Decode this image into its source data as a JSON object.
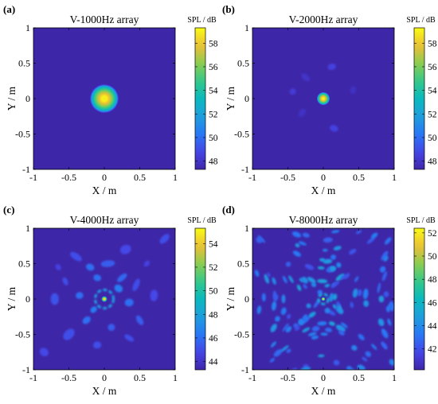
{
  "chart_data": [
    {
      "panel_label": "(a)",
      "type": "heatmap",
      "title": "V-1000Hz array",
      "xlabel": "X / m",
      "ylabel": "Y / m",
      "xlim": [
        -1,
        1
      ],
      "ylim": [
        -1,
        1
      ],
      "xticks": [
        "-1",
        "-0.5",
        "0",
        "0.5",
        "1"
      ],
      "yticks": [
        "1",
        "0.5",
        "0",
        "-0.5",
        "-1"
      ],
      "colorbar": {
        "title": "SPL / dB",
        "min": 47.3,
        "max": 59.3,
        "ticks": [
          "58",
          "56",
          "54",
          "52",
          "50",
          "48"
        ],
        "tick_values": [
          58,
          56,
          54,
          52,
          50,
          48
        ]
      },
      "peak": {
        "x": 0,
        "y": 0,
        "spl": 59,
        "radius_m": 0.2
      },
      "sidelobes": []
    },
    {
      "panel_label": "(b)",
      "type": "heatmap",
      "title": "V-2000Hz array",
      "xlabel": "X / m",
      "ylabel": "Y / m",
      "xlim": [
        -1,
        1
      ],
      "ylim": [
        -1,
        1
      ],
      "xticks": [
        "-1",
        "-0.5",
        "0",
        "0.5",
        "1"
      ],
      "yticks": [
        "1",
        "0.5",
        "0",
        "-0.5",
        "-1"
      ],
      "colorbar": {
        "title": "SPL / dB",
        "min": 47.3,
        "max": 59.3,
        "ticks": [
          "58",
          "56",
          "54",
          "52",
          "50",
          "48"
        ],
        "tick_values": [
          58,
          56,
          54,
          52,
          50,
          48
        ]
      },
      "peak": {
        "x": 0,
        "y": 0,
        "spl": 59,
        "radius_m": 0.09
      },
      "sidelobes": [
        {
          "x": 0.12,
          "y": 0.45,
          "spl": 48.6
        },
        {
          "x": 0.15,
          "y": -0.42,
          "spl": 48.6
        },
        {
          "x": -0.43,
          "y": 0.1,
          "spl": 48.3
        },
        {
          "x": -0.25,
          "y": 0.3,
          "spl": 48.0
        },
        {
          "x": -0.3,
          "y": -0.2,
          "spl": 47.9
        },
        {
          "x": 0.42,
          "y": 0.12,
          "spl": 47.9
        }
      ]
    },
    {
      "panel_label": "(c)",
      "type": "heatmap",
      "title": "V-4000Hz array",
      "xlabel": "X / m",
      "ylabel": "Y / m",
      "xlim": [
        -1,
        1
      ],
      "ylim": [
        -1,
        1
      ],
      "xticks": [
        "-1",
        "-0.5",
        "0",
        "0.5",
        "1"
      ],
      "yticks": [
        "1",
        "0.5",
        "0",
        "-0.5",
        "-1"
      ],
      "colorbar": {
        "title": "SPL / dB",
        "min": 43.3,
        "max": 55.3,
        "ticks": [
          "54",
          "52",
          "50",
          "48",
          "46",
          "44"
        ],
        "tick_values": [
          54,
          52,
          50,
          48,
          46,
          44
        ]
      },
      "peak": {
        "x": 0,
        "y": 0,
        "spl": 55,
        "radius_m": 0.04
      },
      "ring": {
        "radius_m": 0.13,
        "spl": 47.5
      },
      "sidelobes": [
        {
          "x": -0.2,
          "y": 0.45,
          "spl": 46.0
        },
        {
          "x": 0.05,
          "y": 0.5,
          "spl": 45.5
        },
        {
          "x": 0.25,
          "y": 0.3,
          "spl": 45.8
        },
        {
          "x": 0.45,
          "y": 0.2,
          "spl": 45.0
        },
        {
          "x": -0.4,
          "y": 0.6,
          "spl": 45.0
        },
        {
          "x": 0.3,
          "y": 0.7,
          "spl": 44.8
        },
        {
          "x": -0.55,
          "y": 0.25,
          "spl": 45.0
        },
        {
          "x": -0.35,
          "y": 0.05,
          "spl": 46.0
        },
        {
          "x": 0.35,
          "y": -0.05,
          "spl": 46.0
        },
        {
          "x": 0.5,
          "y": -0.3,
          "spl": 45.5
        },
        {
          "x": -0.25,
          "y": -0.3,
          "spl": 46.0
        },
        {
          "x": 0.1,
          "y": -0.4,
          "spl": 45.5
        },
        {
          "x": -0.5,
          "y": -0.5,
          "spl": 45.0
        },
        {
          "x": 0.35,
          "y": -0.55,
          "spl": 45.0
        },
        {
          "x": -0.1,
          "y": -0.65,
          "spl": 45.0
        },
        {
          "x": -0.7,
          "y": 0.0,
          "spl": 45.2
        },
        {
          "x": 0.7,
          "y": 0.05,
          "spl": 44.8
        },
        {
          "x": 0.2,
          "y": 0.15,
          "spl": 46.5
        },
        {
          "x": -0.15,
          "y": -0.15,
          "spl": 46.5
        },
        {
          "x": 0.85,
          "y": 0.85,
          "spl": 45.0
        },
        {
          "x": -0.85,
          "y": -0.75,
          "spl": 44.8
        },
        {
          "x": 0.6,
          "y": 0.5,
          "spl": 44.6
        },
        {
          "x": -0.65,
          "y": 0.45,
          "spl": 44.6
        },
        {
          "x": -0.1,
          "y": 0.3,
          "spl": 46.0
        }
      ]
    },
    {
      "panel_label": "(d)",
      "type": "heatmap",
      "title": "V-8000Hz array",
      "xlabel": "X / m",
      "ylabel": "Y / m",
      "xlim": [
        -1,
        1
      ],
      "ylim": [
        -1,
        1
      ],
      "xticks": [
        "-1",
        "-0.5",
        "0",
        "0.5",
        "1"
      ],
      "yticks": [
        "1",
        "0.5",
        "0",
        "-0.5",
        "-1"
      ],
      "colorbar": {
        "title": "SPL / dB",
        "min": 40.2,
        "max": 52.4,
        "ticks": [
          "52",
          "50",
          "48",
          "46",
          "44",
          "42"
        ],
        "tick_values": [
          52,
          50,
          48,
          46,
          44,
          42
        ]
      },
      "peak": {
        "x": 0,
        "y": 0,
        "spl": 52,
        "radius_m": 0.025
      },
      "ring": {
        "radius_m": 0.07,
        "spl": 45.0
      },
      "sidelobes_random": {
        "count": 170,
        "spl_min": 42.0,
        "spl_max": 45.6
      }
    }
  ]
}
